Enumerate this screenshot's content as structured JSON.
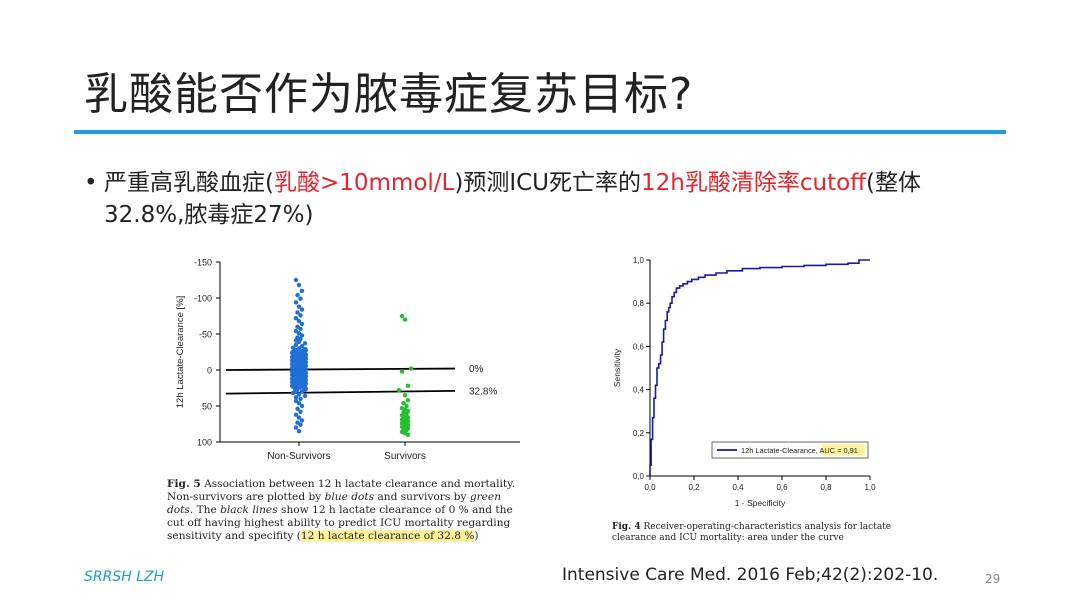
{
  "slide": {
    "title": "乳酸能否作为脓毒症复苏目标?",
    "bullet": {
      "dot": "•",
      "parts": [
        {
          "text": "严重高乳酸血症(",
          "color": "#222222"
        },
        {
          "text": "乳酸>10mmol/L",
          "color": "#e8232a"
        },
        {
          "text": ")预测ICU死亡率的",
          "color": "#222222"
        },
        {
          "text": "12h乳酸清除率cutoff",
          "color": "#e8232a"
        },
        {
          "text": "(整体32.8%,脓毒症27%)",
          "color": "#222222"
        }
      ]
    },
    "footer_left": "SRRSH LZH",
    "citation": "Intensive Care Med. 2016 Feb;42(2):202-10.",
    "page_number": "29"
  },
  "captions": {
    "fig5": {
      "label": "Fig. 5",
      "t1": " Association between 12 h lactate clearance and mortality. Non-survivors are plotted by ",
      "blue": "blue dots",
      "t2": " and survivors by ",
      "green": "green dots",
      "t3": ". The ",
      "black": "black lines",
      "t4": " show 12 h lactate clearance of 0 % and the cut off having highest ability to predict ICU mortality regarding sensitivity and specifity (",
      "highlight": "12 h lactate clearance of 32.8 %",
      "t5": ")"
    },
    "fig4": {
      "label": "Fig. 4",
      "text": " Receiver-operating-characteristics analysis for lactate clearance and ICU mortality: area under the curve"
    }
  },
  "chart_data": [
    {
      "type": "scatter",
      "title": "",
      "xlabel": "",
      "ylabel": "12h Lactate-Clearance [%]",
      "categories": [
        "Non-Survivors",
        "Survivors"
      ],
      "y_ticks": [
        -150,
        -100,
        -50,
        0,
        50,
        100
      ],
      "ylim": [
        -150,
        100
      ],
      "y_inverted": true,
      "reference_lines": [
        {
          "label": "0%",
          "y_start": 0,
          "y_end": -2
        },
        {
          "label": "32.8%",
          "y_start": 32.8,
          "y_end": 29
        }
      ],
      "series": [
        {
          "color": "#1f6fd6",
          "category": "Non-Survivors",
          "values": [
            -125,
            -118,
            -110,
            -104,
            -99,
            -94,
            -88,
            -84,
            -80,
            -76,
            -72,
            -68,
            -64,
            -60,
            -57,
            -54,
            -51,
            -48,
            -45,
            -43,
            -41,
            -39,
            -37,
            -35,
            -33,
            -31,
            -30,
            -28,
            -27,
            -25,
            -24,
            -22,
            -21,
            -20,
            -19,
            -18,
            -17,
            -16,
            -15,
            -14,
            -13,
            -12,
            -11,
            -10,
            -9,
            -8,
            -7,
            -6,
            -5,
            -4,
            -3,
            -2,
            -1,
            0,
            1,
            2,
            3,
            4,
            5,
            6,
            7,
            8,
            9,
            10,
            11,
            12,
            13,
            14,
            15,
            16,
            17,
            18,
            19,
            20,
            21,
            22,
            24,
            26,
            28,
            30,
            32,
            34,
            36,
            38,
            40,
            43,
            46,
            50,
            54,
            58,
            62,
            66,
            70,
            73,
            76,
            80,
            85
          ]
        },
        {
          "color": "#22c02a",
          "category": "Survivors",
          "values": [
            -75,
            -70,
            -2,
            2,
            22,
            28,
            35,
            42,
            46,
            50,
            53,
            55,
            57,
            59,
            61,
            63,
            64,
            66,
            67,
            68,
            69,
            70,
            71,
            72,
            73,
            74,
            75,
            76,
            77,
            78,
            79,
            80,
            81,
            82,
            84,
            86,
            88,
            90
          ]
        }
      ]
    },
    {
      "type": "line",
      "title": "",
      "xlabel": "1 - Specificity",
      "ylabel": "Sensitivity",
      "xlim": [
        0,
        1
      ],
      "ylim": [
        0,
        1
      ],
      "x_ticks": [
        "0,0",
        "0,2",
        "0,4",
        "0,6",
        "0,8",
        "1,0"
      ],
      "y_ticks": [
        "0,0",
        "0,2",
        "0,4",
        "0,6",
        "0,8",
        "1,0"
      ],
      "legend": {
        "position": "bottom-right",
        "label": "12h Lactate-Clearance, ",
        "auc_label": "AUC = 0,91"
      },
      "series": [
        {
          "name": "12h Lactate-Clearance",
          "color": "#1a1aa8",
          "x": [
            0,
            0,
            0.005,
            0.005,
            0.012,
            0.012,
            0.018,
            0.018,
            0.025,
            0.025,
            0.032,
            0.032,
            0.04,
            0.04,
            0.048,
            0.048,
            0.055,
            0.055,
            0.062,
            0.062,
            0.07,
            0.07,
            0.078,
            0.078,
            0.085,
            0.085,
            0.092,
            0.092,
            0.1,
            0.1,
            0.11,
            0.11,
            0.12,
            0.12,
            0.135,
            0.135,
            0.15,
            0.15,
            0.17,
            0.17,
            0.19,
            0.19,
            0.22,
            0.22,
            0.25,
            0.25,
            0.3,
            0.3,
            0.35,
            0.35,
            0.42,
            0.42,
            0.5,
            0.5,
            0.6,
            0.6,
            0.7,
            0.7,
            0.8,
            0.8,
            0.9,
            0.9,
            0.95,
            0.95,
            1.0
          ],
          "y": [
            0,
            0.05,
            0.05,
            0.17,
            0.17,
            0.27,
            0.27,
            0.36,
            0.36,
            0.42,
            0.42,
            0.5,
            0.5,
            0.52,
            0.52,
            0.56,
            0.56,
            0.62,
            0.62,
            0.68,
            0.68,
            0.72,
            0.72,
            0.76,
            0.76,
            0.78,
            0.78,
            0.8,
            0.8,
            0.83,
            0.83,
            0.85,
            0.85,
            0.87,
            0.87,
            0.88,
            0.88,
            0.89,
            0.89,
            0.9,
            0.9,
            0.91,
            0.91,
            0.92,
            0.92,
            0.93,
            0.93,
            0.94,
            0.94,
            0.95,
            0.95,
            0.96,
            0.96,
            0.965,
            0.965,
            0.97,
            0.97,
            0.975,
            0.975,
            0.98,
            0.98,
            0.985,
            0.985,
            1.0,
            1.0
          ]
        }
      ]
    }
  ]
}
